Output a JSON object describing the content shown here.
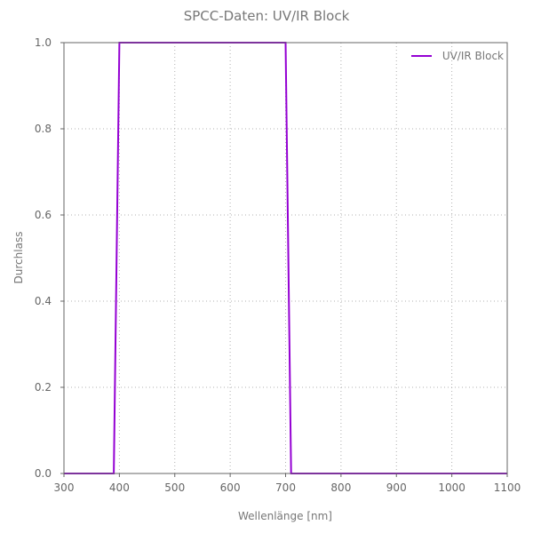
{
  "chart_data": {
    "type": "line",
    "title": "SPCC-Daten: UV/IR Block",
    "xlabel": "Wellenlänge [nm]",
    "ylabel": "Durchlass",
    "xlim": [
      300,
      1100
    ],
    "ylim": [
      0.0,
      1.0
    ],
    "x_ticks": [
      300,
      400,
      500,
      600,
      700,
      800,
      900,
      1000,
      1100
    ],
    "y_ticks": [
      0.0,
      0.2,
      0.4,
      0.6,
      0.8,
      1.0
    ],
    "y_tick_labels": [
      "0.0",
      "0.2",
      "0.4",
      "0.6",
      "0.8",
      "1.0"
    ],
    "grid": true,
    "legend_position": "top-right",
    "series": [
      {
        "name": "UV/IR Block",
        "color": "#9400d3",
        "x": [
          300,
          390,
          400,
          700,
          710,
          1100
        ],
        "y": [
          0.0,
          0.0,
          1.0,
          1.0,
          0.0,
          0.0
        ]
      }
    ]
  }
}
